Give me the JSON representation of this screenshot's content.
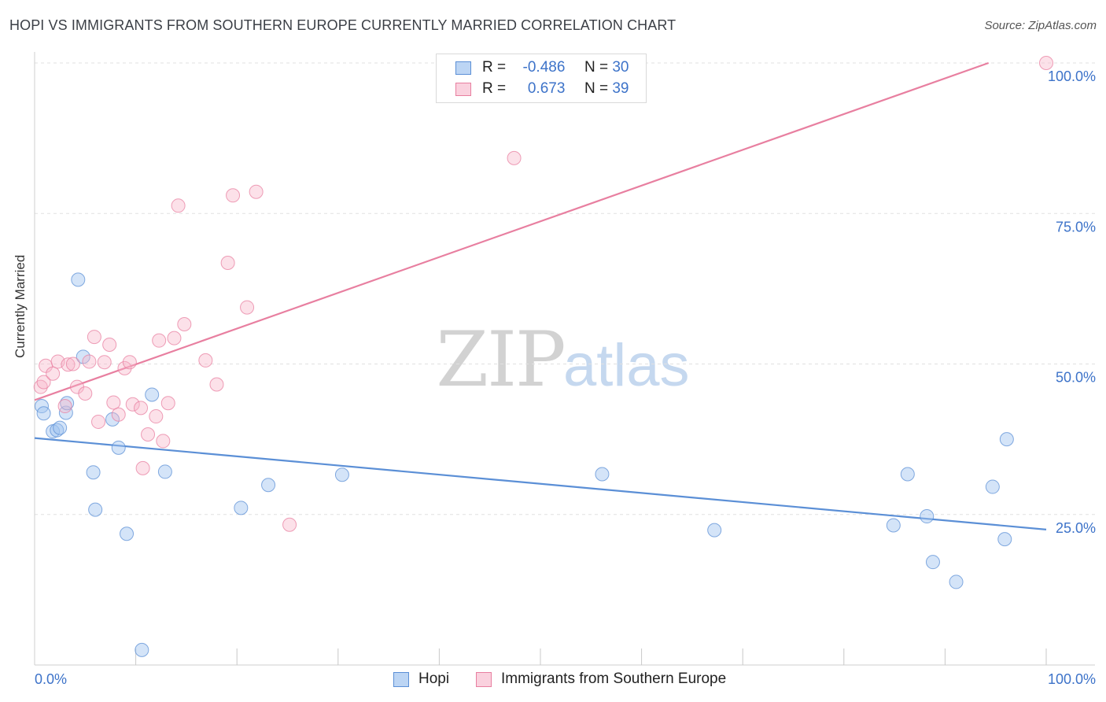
{
  "header": {
    "title": "HOPI VS IMMIGRANTS FROM SOUTHERN EUROPE CURRENTLY MARRIED CORRELATION CHART",
    "source": "Source: ZipAtlas.com"
  },
  "watermark": {
    "zip": "ZIP",
    "atlas": "atlas"
  },
  "stats_legend": {
    "rows": [
      {
        "r_label": "R =",
        "r_value": "-0.486",
        "n_label": "N =",
        "n_value": "30",
        "color": "#5b8fd6"
      },
      {
        "r_label": "R =",
        "r_value": "0.673",
        "n_label": "N =",
        "n_value": "39",
        "color": "#e87fa0"
      }
    ]
  },
  "chart_data": {
    "type": "scatter",
    "title": "HOPI VS IMMIGRANTS FROM SOUTHERN EUROPE CURRENTLY MARRIED CORRELATION CHART",
    "xlabel": "",
    "ylabel": "Currently Married",
    "xlim": [
      0,
      100
    ],
    "ylim": [
      0,
      100
    ],
    "x_tick_labels": [
      "0.0%",
      "100.0%"
    ],
    "y_tick_labels": [
      "25.0%",
      "50.0%",
      "75.0%",
      "100.0%"
    ],
    "y_tick_values": [
      25,
      50,
      75,
      100
    ],
    "grid": true,
    "series": [
      {
        "name": "Hopi",
        "color": "#5b8fd6",
        "fill": "rgba(160,195,240,0.45)",
        "points": [
          [
            0.7,
            43.0
          ],
          [
            0.9,
            41.8
          ],
          [
            1.8,
            38.8
          ],
          [
            2.2,
            39.0
          ],
          [
            2.5,
            39.4
          ],
          [
            3.1,
            41.9
          ],
          [
            3.2,
            43.5
          ],
          [
            4.3,
            64.0
          ],
          [
            4.8,
            51.2
          ],
          [
            5.8,
            32.0
          ],
          [
            6.0,
            25.8
          ],
          [
            7.7,
            40.8
          ],
          [
            8.3,
            36.1
          ],
          [
            9.1,
            21.8
          ],
          [
            10.6,
            2.5
          ],
          [
            11.6,
            44.9
          ],
          [
            12.9,
            32.1
          ],
          [
            20.4,
            26.1
          ],
          [
            23.1,
            29.9
          ],
          [
            30.4,
            31.6
          ],
          [
            56.1,
            31.7
          ],
          [
            67.2,
            22.4
          ],
          [
            84.9,
            23.2
          ],
          [
            86.3,
            31.7
          ],
          [
            88.2,
            24.7
          ],
          [
            88.8,
            17.1
          ],
          [
            91.1,
            13.8
          ],
          [
            94.7,
            29.6
          ],
          [
            95.9,
            20.9
          ],
          [
            96.1,
            37.5
          ]
        ]
      },
      {
        "name": "Immigrants from Southern Europe",
        "color": "#e87fa0",
        "fill": "rgba(248,180,200,0.40)",
        "points": [
          [
            0.6,
            46.2
          ],
          [
            0.9,
            47.0
          ],
          [
            1.1,
            49.7
          ],
          [
            1.8,
            48.4
          ],
          [
            2.3,
            50.4
          ],
          [
            3.0,
            43.0
          ],
          [
            3.3,
            49.9
          ],
          [
            3.8,
            50.0
          ],
          [
            4.2,
            46.2
          ],
          [
            5.0,
            45.1
          ],
          [
            5.4,
            50.4
          ],
          [
            5.9,
            54.5
          ],
          [
            6.3,
            40.4
          ],
          [
            6.9,
            50.3
          ],
          [
            7.4,
            53.2
          ],
          [
            7.8,
            43.6
          ],
          [
            8.3,
            41.6
          ],
          [
            8.9,
            49.3
          ],
          [
            9.4,
            50.3
          ],
          [
            9.7,
            43.3
          ],
          [
            10.5,
            42.7
          ],
          [
            10.7,
            32.7
          ],
          [
            11.2,
            38.3
          ],
          [
            12.0,
            41.3
          ],
          [
            12.3,
            53.9
          ],
          [
            12.7,
            37.2
          ],
          [
            13.2,
            43.5
          ],
          [
            13.8,
            54.3
          ],
          [
            14.2,
            76.3
          ],
          [
            14.8,
            56.6
          ],
          [
            16.9,
            50.6
          ],
          [
            18.0,
            46.6
          ],
          [
            19.1,
            66.8
          ],
          [
            19.6,
            78.0
          ],
          [
            21.0,
            59.4
          ],
          [
            21.9,
            78.6
          ],
          [
            25.2,
            23.3
          ],
          [
            47.4,
            84.2
          ],
          [
            100.0,
            100.0
          ]
        ]
      }
    ],
    "trendlines": [
      {
        "series": "Hopi",
        "x": [
          0,
          100
        ],
        "y": [
          37.7,
          22.5
        ]
      },
      {
        "series": "Immigrants from Southern Europe",
        "x": [
          0,
          94.3
        ],
        "y": [
          44.0,
          100.0
        ]
      }
    ]
  },
  "legend": {
    "items": [
      {
        "label": "Hopi",
        "color": "#5b8fd6"
      },
      {
        "label": "Immigrants from Southern Europe",
        "color": "#e87fa0"
      }
    ]
  }
}
